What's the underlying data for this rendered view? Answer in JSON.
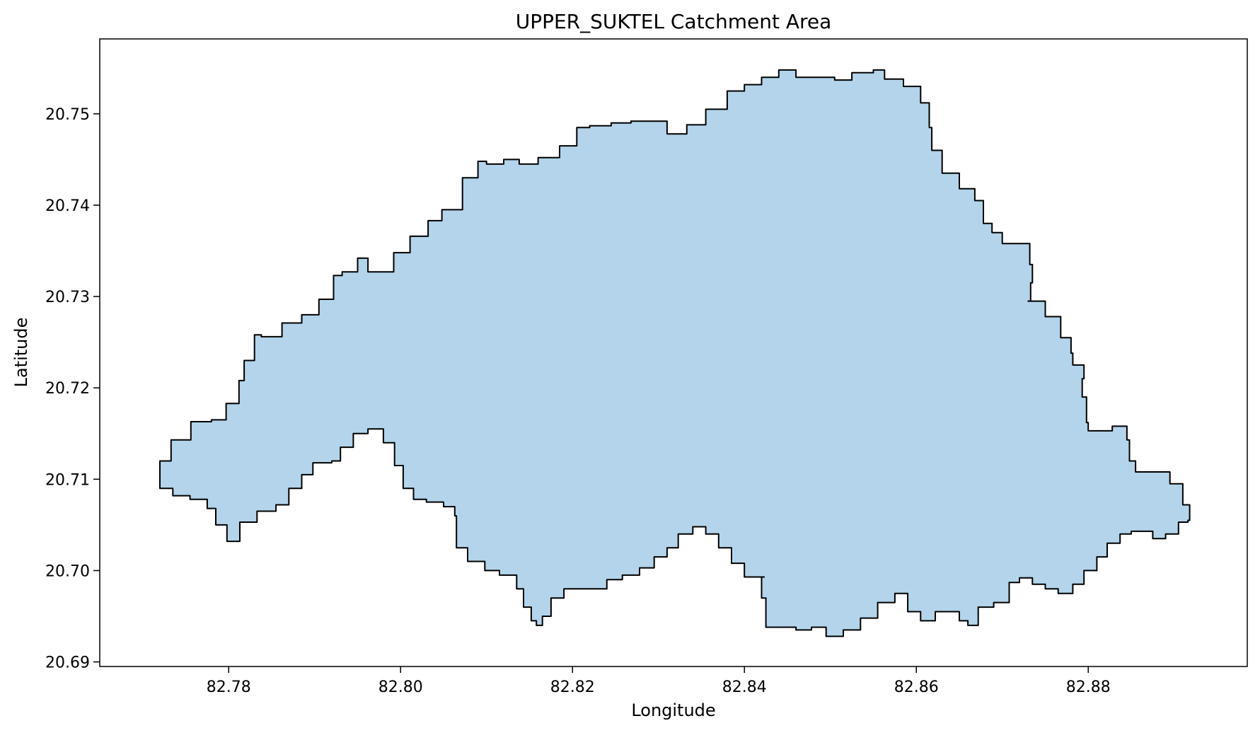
{
  "chart_data": {
    "type": "map",
    "title": "UPPER_SUKTEL Catchment Area",
    "xlabel": "Longitude",
    "ylabel": "Latitude",
    "xlim": [
      82.765,
      82.8985
    ],
    "ylim": [
      20.6895,
      20.7582
    ],
    "xticks": [
      82.78,
      82.8,
      82.82,
      82.84,
      82.86,
      82.88
    ],
    "xtick_labels": [
      "82.78",
      "82.80",
      "82.82",
      "82.84",
      "82.86",
      "82.88"
    ],
    "yticks": [
      20.69,
      20.7,
      20.71,
      20.72,
      20.73,
      20.74,
      20.75
    ],
    "ytick_labels": [
      "20.69",
      "20.70",
      "20.71",
      "20.72",
      "20.73",
      "20.74",
      "20.75"
    ],
    "fill_color": "#b3d4ea",
    "edge_color": "#000000",
    "boundary": [
      [
        82.772,
        20.71
      ],
      [
        82.7733,
        20.712
      ],
      [
        82.7756,
        20.7143
      ],
      [
        82.778,
        20.7163
      ],
      [
        82.7797,
        20.7165
      ],
      [
        82.7812,
        20.7183
      ],
      [
        82.7818,
        20.7208
      ],
      [
        82.783,
        20.723
      ],
      [
        82.7838,
        20.7258
      ],
      [
        82.7862,
        20.7256
      ],
      [
        82.7885,
        20.7271
      ],
      [
        82.7905,
        20.728
      ],
      [
        82.7922,
        20.7297
      ],
      [
        82.7932,
        20.7323
      ],
      [
        82.795,
        20.7327
      ],
      [
        82.7962,
        20.7342
      ],
      [
        82.7992,
        20.7327
      ],
      [
        82.8011,
        20.7348
      ],
      [
        82.8032,
        20.7366
      ],
      [
        82.8048,
        20.7383
      ],
      [
        82.8072,
        20.7395
      ],
      [
        82.809,
        20.743
      ],
      [
        82.81,
        20.7448
      ],
      [
        82.812,
        20.7445
      ],
      [
        82.8138,
        20.745
      ],
      [
        82.816,
        20.7445
      ],
      [
        82.8185,
        20.7452
      ],
      [
        82.8205,
        20.7465
      ],
      [
        82.822,
        20.7485
      ],
      [
        82.8245,
        20.7487
      ],
      [
        82.8268,
        20.749
      ],
      [
        82.829,
        20.7492
      ],
      [
        82.831,
        20.7492
      ],
      [
        82.8333,
        20.7478
      ],
      [
        82.8355,
        20.7488
      ],
      [
        82.838,
        20.7505
      ],
      [
        82.84,
        20.7525
      ],
      [
        82.842,
        20.7532
      ],
      [
        82.844,
        20.754
      ],
      [
        82.846,
        20.7548
      ],
      [
        82.848,
        20.754
      ],
      [
        82.8505,
        20.754
      ],
      [
        82.8525,
        20.7537
      ],
      [
        82.855,
        20.7545
      ],
      [
        82.8563,
        20.7548
      ],
      [
        82.8585,
        20.7538
      ],
      [
        82.8605,
        20.753
      ],
      [
        82.8615,
        20.7512
      ],
      [
        82.8618,
        20.7485
      ],
      [
        82.863,
        20.746
      ],
      [
        82.865,
        20.7435
      ],
      [
        82.8668,
        20.7418
      ],
      [
        82.8678,
        20.7405
      ],
      [
        82.8688,
        20.738
      ],
      [
        82.87,
        20.737
      ],
      [
        82.8718,
        20.7358
      ],
      [
        82.8732,
        20.7358
      ],
      [
        82.8735,
        20.7335
      ],
      [
        82.8733,
        20.7315
      ],
      [
        82.873,
        20.7295
      ],
      [
        82.875,
        20.7295
      ],
      [
        82.8768,
        20.7278
      ],
      [
        82.878,
        20.7255
      ],
      [
        82.8782,
        20.7238
      ],
      [
        82.8795,
        20.7225
      ],
      [
        82.8793,
        20.721
      ],
      [
        82.8798,
        20.719
      ],
      [
        82.88,
        20.7162
      ],
      [
        82.8805,
        20.7153
      ],
      [
        82.8828,
        20.7153
      ],
      [
        82.8845,
        20.7158
      ],
      [
        82.8848,
        20.7143
      ],
      [
        82.8855,
        20.712
      ],
      [
        82.8868,
        20.7108
      ],
      [
        82.8895,
        20.7108
      ],
      [
        82.891,
        20.7095
      ],
      [
        82.8918,
        20.7072
      ],
      [
        82.8916,
        20.7055
      ],
      [
        82.8905,
        20.7053
      ],
      [
        82.889,
        20.704
      ],
      [
        82.8875,
        20.7035
      ],
      [
        82.885,
        20.7043
      ],
      [
        82.8837,
        20.704
      ],
      [
        82.8822,
        20.703
      ],
      [
        82.881,
        20.7015
      ],
      [
        82.8795,
        20.7
      ],
      [
        82.8782,
        20.6985
      ],
      [
        82.8765,
        20.6975
      ],
      [
        82.875,
        20.698
      ],
      [
        82.8735,
        20.6985
      ],
      [
        82.872,
        20.6992
      ],
      [
        82.8708,
        20.6987
      ],
      [
        82.869,
        20.6965
      ],
      [
        82.8672,
        20.696
      ],
      [
        82.866,
        20.694
      ],
      [
        82.865,
        20.6945
      ],
      [
        82.8638,
        20.6955
      ],
      [
        82.8622,
        20.6955
      ],
      [
        82.8605,
        20.6945
      ],
      [
        82.859,
        20.6955
      ],
      [
        82.8575,
        20.6975
      ],
      [
        82.8555,
        20.6965
      ],
      [
        82.8535,
        20.6948
      ],
      [
        82.8515,
        20.6935
      ],
      [
        82.8495,
        20.6928
      ],
      [
        82.8478,
        20.6938
      ],
      [
        82.846,
        20.6935
      ],
      [
        82.8438,
        20.6938
      ],
      [
        82.8425,
        20.6938
      ],
      [
        82.842,
        20.697
      ],
      [
        82.8423,
        20.6993
      ],
      [
        82.84,
        20.6993
      ],
      [
        82.8385,
        20.7008
      ],
      [
        82.837,
        20.7025
      ],
      [
        82.8355,
        20.704
      ],
      [
        82.834,
        20.7048
      ],
      [
        82.8323,
        20.704
      ],
      [
        82.831,
        20.7025
      ],
      [
        82.8295,
        20.7015
      ],
      [
        82.8278,
        20.7003
      ],
      [
        82.8258,
        20.6995
      ],
      [
        82.824,
        20.699
      ],
      [
        82.8222,
        20.698
      ],
      [
        82.8205,
        20.698
      ],
      [
        82.819,
        20.698
      ],
      [
        82.8175,
        20.697
      ],
      [
        82.8165,
        20.695
      ],
      [
        82.8158,
        20.694
      ],
      [
        82.8152,
        20.6945
      ],
      [
        82.8143,
        20.696
      ],
      [
        82.8135,
        20.698
      ],
      [
        82.8133,
        20.6995
      ],
      [
        82.8115,
        20.6995
      ],
      [
        82.8098,
        20.7
      ],
      [
        82.8078,
        20.701
      ],
      [
        82.8065,
        20.7025
      ],
      [
        82.8065,
        20.7043
      ],
      [
        82.8063,
        20.706
      ],
      [
        82.805,
        20.707
      ],
      [
        82.803,
        20.7075
      ],
      [
        82.8015,
        20.7078
      ],
      [
        82.8003,
        20.709
      ],
      [
        82.7993,
        20.7115
      ],
      [
        82.798,
        20.714
      ],
      [
        82.7962,
        20.7155
      ],
      [
        82.7945,
        20.715
      ],
      [
        82.793,
        20.7135
      ],
      [
        82.792,
        20.712
      ],
      [
        82.7898,
        20.7118
      ],
      [
        82.7885,
        20.7105
      ],
      [
        82.787,
        20.709
      ],
      [
        82.7855,
        20.7072
      ],
      [
        82.7833,
        20.7065
      ],
      [
        82.7813,
        20.7053
      ],
      [
        82.7798,
        20.7032
      ],
      [
        82.7785,
        20.705
      ],
      [
        82.7775,
        20.7068
      ],
      [
        82.7755,
        20.7078
      ],
      [
        82.7735,
        20.7082
      ],
      [
        82.772,
        20.709
      ]
    ]
  }
}
